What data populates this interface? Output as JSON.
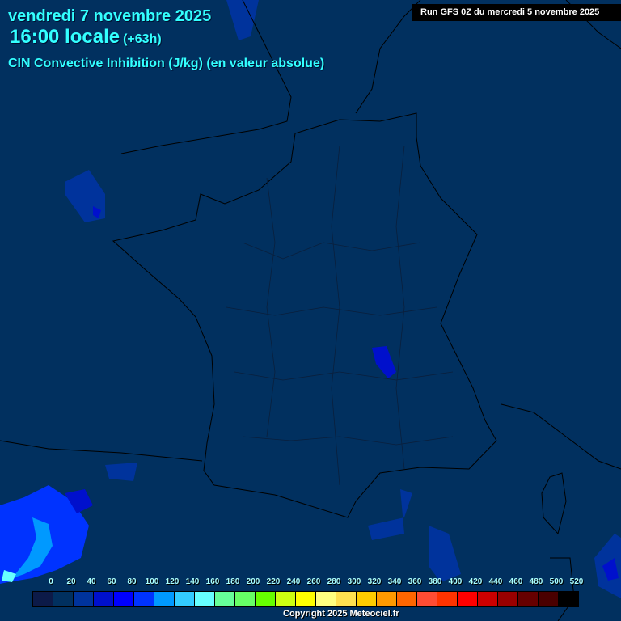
{
  "header": {
    "date": "vendredi 7 novembre 2025",
    "time": "16:00 locale",
    "offset": "(+63h)",
    "parameter": "CIN Convective Inhibition (J/kg) (en valeur absolue)",
    "run": "Run GFS 0Z du mercredi 5 novembre 2025"
  },
  "legend": {
    "labels": [
      "0",
      "20",
      "40",
      "60",
      "80",
      "100",
      "120",
      "140",
      "160",
      "180",
      "200",
      "220",
      "240",
      "260",
      "280",
      "300",
      "320",
      "340",
      "360",
      "380",
      "400",
      "420",
      "440",
      "460",
      "480",
      "500",
      "520"
    ],
    "colors": [
      "#0c1a48",
      "#01305f",
      "#00339c",
      "#0010cc",
      "#0000ff",
      "#0033ff",
      "#0099ff",
      "#33ccff",
      "#66ffff",
      "#66ff99",
      "#66ff66",
      "#66ff00",
      "#ccff11",
      "#ffff00",
      "#ffff80",
      "#ffe050",
      "#ffcc00",
      "#ff9900",
      "#ff6600",
      "#ff4c33",
      "#ff3300",
      "#ff0000",
      "#cc0000",
      "#990000",
      "#660000",
      "#4a0000",
      "#000000"
    ]
  },
  "footer": {
    "copyright": "Copyright 2025 Meteociel.fr"
  }
}
